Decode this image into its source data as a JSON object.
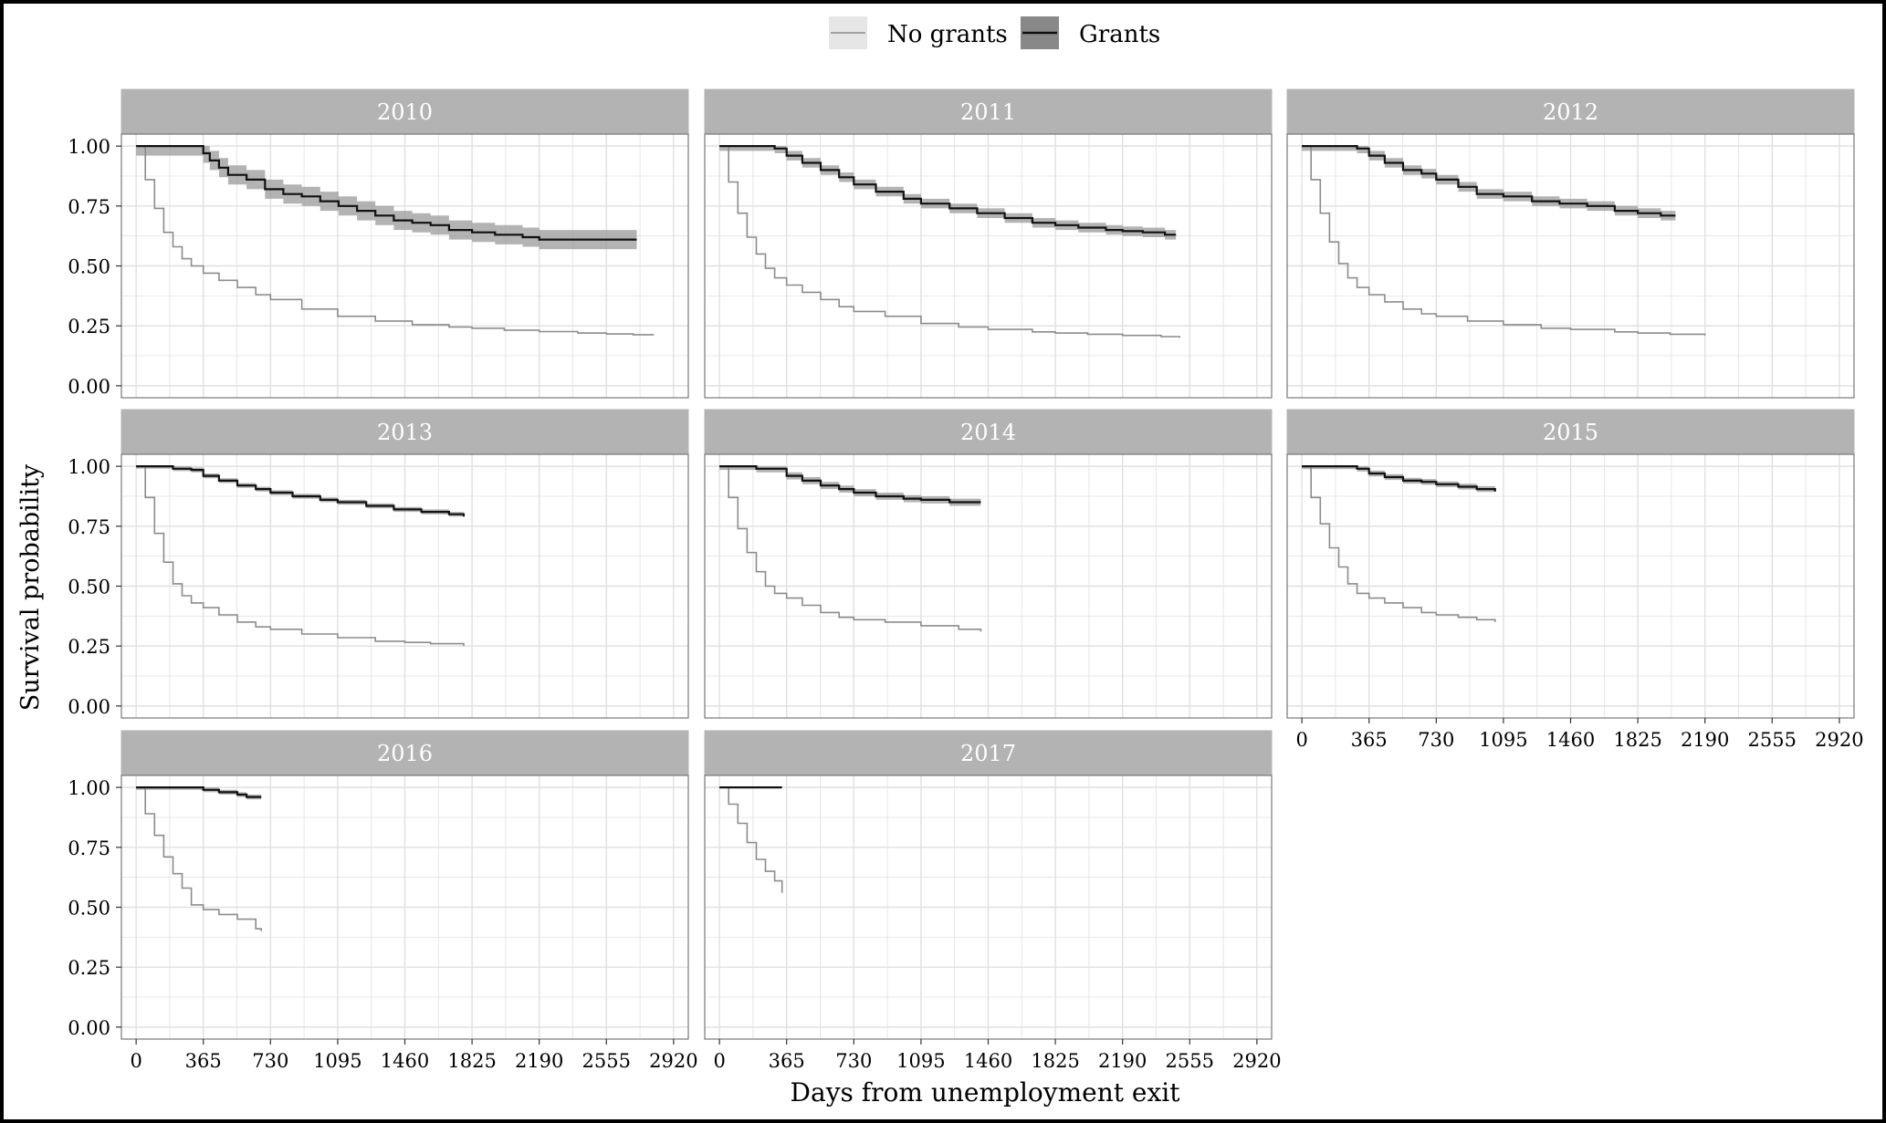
{
  "chart_data": {
    "type": "line",
    "subtype": "kaplan-meier survival curves, faceted by year",
    "xlabel": "Days from unemployment exit",
    "ylabel": "Survival probability",
    "xlim": [
      -80,
      3000
    ],
    "ylim": [
      -0.05,
      1.05
    ],
    "x_ticks": [
      0,
      365,
      730,
      1095,
      1460,
      1825,
      2190,
      2555,
      2920
    ],
    "y_ticks": [
      0.0,
      0.25,
      0.5,
      0.75,
      1.0
    ],
    "y_tick_labels": [
      "0.00",
      "0.25",
      "0.50",
      "0.75",
      "1.00"
    ],
    "grid": true,
    "legend": {
      "position": "top",
      "entries": [
        {
          "label": "No grants",
          "color": "#8c8c8c",
          "fill": "#e6e6e6"
        },
        {
          "label": "Grants",
          "color": "#111111",
          "fill": "#888888"
        }
      ]
    },
    "colors": {
      "strip_fill": "#b3b3b3",
      "strip_text": "#ffffff",
      "no_grants_line": "#8c8c8c",
      "grants_line": "#111111",
      "grants_band": "#999999",
      "grid": "#e0e0e0",
      "panel_border": "#777777"
    },
    "facets": [
      {
        "title": "2010",
        "no_grants": {
          "x": [
            0,
            50,
            100,
            150,
            200,
            250,
            300,
            365,
            450,
            550,
            650,
            730,
            900,
            1095,
            1300,
            1500,
            1700,
            1825,
            2000,
            2190,
            2400,
            2555,
            2700,
            2810
          ],
          "y": [
            1.0,
            0.86,
            0.74,
            0.64,
            0.58,
            0.53,
            0.5,
            0.47,
            0.44,
            0.41,
            0.38,
            0.36,
            0.32,
            0.29,
            0.27,
            0.255,
            0.245,
            0.24,
            0.232,
            0.226,
            0.22,
            0.216,
            0.213,
            0.21
          ]
        },
        "grants": {
          "x": [
            0,
            300,
            365,
            400,
            450,
            500,
            600,
            700,
            800,
            900,
            1000,
            1100,
            1200,
            1300,
            1400,
            1500,
            1600,
            1700,
            1825,
            1950,
            2100,
            2190,
            2400,
            2600,
            2720
          ],
          "y": [
            1.0,
            1.0,
            0.97,
            0.94,
            0.91,
            0.88,
            0.86,
            0.82,
            0.8,
            0.79,
            0.77,
            0.75,
            0.73,
            0.71,
            0.69,
            0.68,
            0.67,
            0.65,
            0.64,
            0.63,
            0.62,
            0.61,
            0.61,
            0.61,
            0.61
          ],
          "band": 0.04
        }
      },
      {
        "title": "2011",
        "no_grants": {
          "x": [
            0,
            50,
            100,
            150,
            200,
            250,
            300,
            365,
            450,
            550,
            650,
            730,
            900,
            1095,
            1300,
            1460,
            1700,
            1825,
            2000,
            2190,
            2400,
            2500
          ],
          "y": [
            1.0,
            0.85,
            0.72,
            0.62,
            0.55,
            0.49,
            0.45,
            0.42,
            0.39,
            0.36,
            0.33,
            0.31,
            0.29,
            0.26,
            0.245,
            0.235,
            0.225,
            0.22,
            0.215,
            0.21,
            0.205,
            0.2
          ]
        },
        "grants": {
          "x": [
            0,
            300,
            365,
            450,
            550,
            650,
            730,
            850,
            1000,
            1095,
            1250,
            1400,
            1550,
            1700,
            1825,
            1950,
            2100,
            2190,
            2300,
            2420,
            2480
          ],
          "y": [
            1.0,
            0.99,
            0.96,
            0.93,
            0.9,
            0.87,
            0.84,
            0.81,
            0.78,
            0.76,
            0.74,
            0.72,
            0.7,
            0.68,
            0.67,
            0.66,
            0.65,
            0.645,
            0.64,
            0.63,
            0.63
          ],
          "band": 0.02
        }
      },
      {
        "title": "2012",
        "no_grants": {
          "x": [
            0,
            50,
            100,
            150,
            200,
            250,
            300,
            365,
            450,
            550,
            650,
            730,
            900,
            1095,
            1300,
            1460,
            1700,
            1825,
            2000,
            2190
          ],
          "y": [
            1.0,
            0.86,
            0.72,
            0.6,
            0.51,
            0.45,
            0.41,
            0.38,
            0.35,
            0.32,
            0.3,
            0.29,
            0.27,
            0.255,
            0.24,
            0.235,
            0.225,
            0.22,
            0.215,
            0.21
          ]
        },
        "grants": {
          "x": [
            0,
            300,
            365,
            450,
            550,
            650,
            730,
            850,
            950,
            1095,
            1250,
            1400,
            1550,
            1700,
            1825,
            1950,
            2030
          ],
          "y": [
            1.0,
            0.99,
            0.96,
            0.93,
            0.9,
            0.885,
            0.86,
            0.83,
            0.8,
            0.79,
            0.77,
            0.76,
            0.75,
            0.73,
            0.72,
            0.71,
            0.71
          ],
          "band": 0.02
        }
      },
      {
        "title": "2013",
        "no_grants": {
          "x": [
            0,
            50,
            100,
            150,
            200,
            250,
            300,
            365,
            450,
            550,
            650,
            730,
            900,
            1095,
            1300,
            1460,
            1600,
            1780
          ],
          "y": [
            1.0,
            0.87,
            0.72,
            0.6,
            0.51,
            0.46,
            0.43,
            0.41,
            0.38,
            0.35,
            0.33,
            0.32,
            0.3,
            0.285,
            0.27,
            0.265,
            0.26,
            0.25
          ]
        },
        "grants": {
          "x": [
            0,
            200,
            300,
            365,
            450,
            550,
            650,
            730,
            850,
            1000,
            1095,
            1250,
            1400,
            1550,
            1700,
            1780
          ],
          "y": [
            1.0,
            0.99,
            0.985,
            0.96,
            0.94,
            0.92,
            0.905,
            0.89,
            0.875,
            0.86,
            0.85,
            0.835,
            0.82,
            0.81,
            0.8,
            0.79
          ],
          "band": 0.01
        }
      },
      {
        "title": "2014",
        "no_grants": {
          "x": [
            0,
            50,
            100,
            150,
            200,
            250,
            300,
            365,
            450,
            550,
            650,
            730,
            900,
            1095,
            1300,
            1420
          ],
          "y": [
            1.0,
            0.87,
            0.74,
            0.64,
            0.56,
            0.5,
            0.47,
            0.45,
            0.42,
            0.39,
            0.37,
            0.36,
            0.35,
            0.335,
            0.32,
            0.31
          ]
        },
        "grants": {
          "x": [
            0,
            200,
            300,
            365,
            450,
            550,
            650,
            730,
            850,
            1000,
            1095,
            1250,
            1420
          ],
          "y": [
            1.0,
            0.99,
            0.99,
            0.96,
            0.94,
            0.92,
            0.905,
            0.89,
            0.875,
            0.865,
            0.86,
            0.85,
            0.85
          ],
          "band": 0.015
        }
      },
      {
        "title": "2015",
        "no_grants": {
          "x": [
            0,
            50,
            100,
            150,
            200,
            250,
            300,
            365,
            450,
            550,
            650,
            730,
            850,
            950,
            1050
          ],
          "y": [
            1.0,
            0.87,
            0.76,
            0.66,
            0.58,
            0.51,
            0.47,
            0.45,
            0.43,
            0.41,
            0.39,
            0.38,
            0.37,
            0.36,
            0.35
          ]
        },
        "grants": {
          "x": [
            0,
            200,
            300,
            365,
            450,
            550,
            650,
            730,
            850,
            950,
            1050
          ],
          "y": [
            1.0,
            1.0,
            0.99,
            0.97,
            0.955,
            0.94,
            0.935,
            0.925,
            0.915,
            0.905,
            0.895
          ],
          "band": 0.012
        }
      },
      {
        "title": "2016",
        "no_grants": {
          "x": [
            0,
            50,
            100,
            150,
            200,
            250,
            300,
            365,
            450,
            550,
            650,
            680
          ],
          "y": [
            1.0,
            0.89,
            0.8,
            0.71,
            0.64,
            0.58,
            0.51,
            0.49,
            0.47,
            0.45,
            0.41,
            0.4
          ]
        },
        "grants": {
          "x": [
            0,
            300,
            365,
            450,
            550,
            600,
            680
          ],
          "y": [
            1.0,
            1.0,
            0.99,
            0.98,
            0.97,
            0.96,
            0.96
          ],
          "band": 0.01
        }
      },
      {
        "title": "2017",
        "no_grants": {
          "x": [
            0,
            50,
            100,
            150,
            200,
            250,
            300,
            340
          ],
          "y": [
            1.0,
            0.93,
            0.85,
            0.77,
            0.7,
            0.65,
            0.61,
            0.56
          ]
        },
        "grants": {
          "x": [
            0,
            340
          ],
          "y": [
            1.0,
            1.0
          ],
          "band": 0
        }
      }
    ]
  }
}
